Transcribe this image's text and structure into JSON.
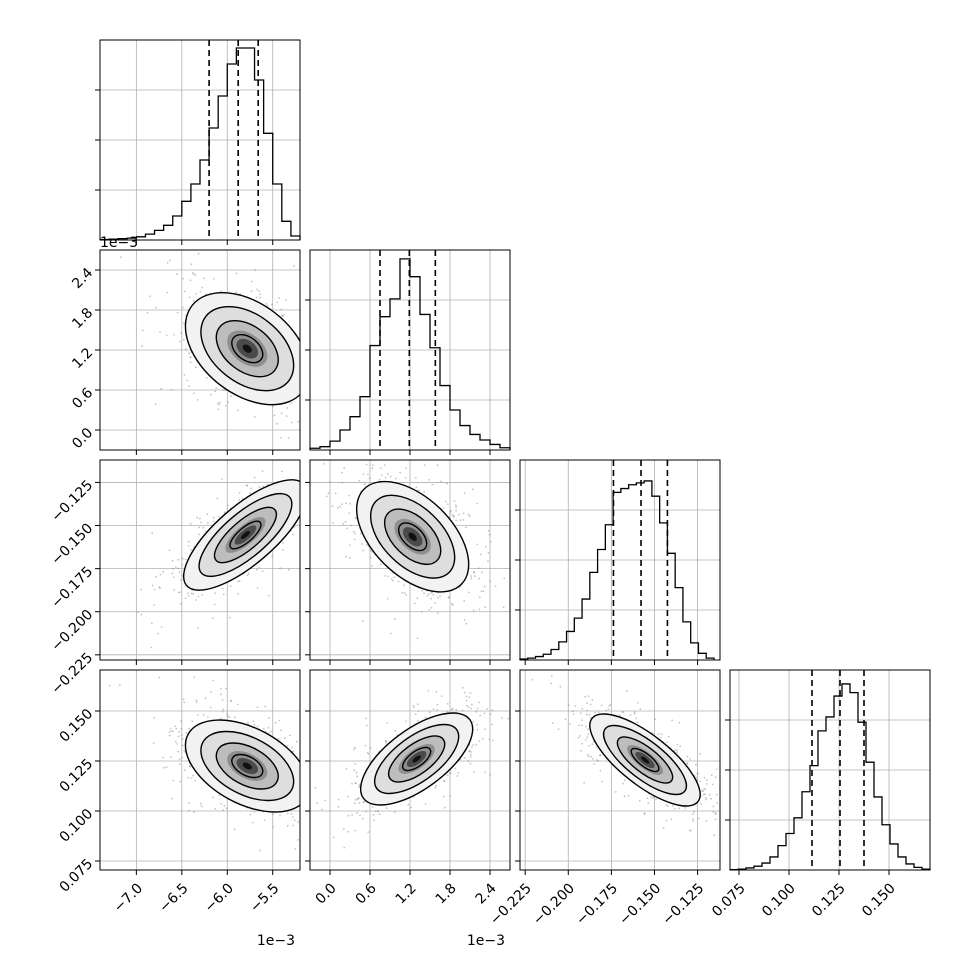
{
  "chart_data": {
    "type": "corner",
    "title": "",
    "style": {
      "line_color": "#000000",
      "grid_color": "#b0b0b0",
      "point_color": "#8a8a8a",
      "background": "#ffffff",
      "grid": true,
      "quantile_line_style": "dashed"
    },
    "parameters": [
      {
        "label": "",
        "range": [
          -0.0074,
          -0.0052
        ],
        "ticks": [
          -0.007,
          -0.0065,
          -0.006,
          -0.0055
        ],
        "tick_labels": [
          "−7.0",
          "−6.5",
          "−6.0",
          "−5.5"
        ],
        "offset_text": "1e−3",
        "quantiles": [
          -0.0062,
          -0.00588,
          -0.00566
        ],
        "histogram": {
          "edges": [
            -0.0074,
            -0.0073,
            -0.0072,
            -0.0071,
            -0.007,
            -0.0069,
            -0.0068,
            -0.0067,
            -0.0066,
            -0.0065,
            -0.0064,
            -0.0063,
            -0.0062,
            -0.0061,
            -0.006,
            -0.0059,
            -0.0058,
            -0.0057,
            -0.0056,
            -0.0055,
            -0.0054,
            -0.0053,
            -0.0052
          ],
          "counts": [
            2,
            3,
            5,
            7,
            12,
            22,
            36,
            55,
            90,
            145,
            210,
            300,
            420,
            540,
            660,
            720,
            720,
            600,
            400,
            210,
            70,
            15
          ],
          "ymax": 750
        }
      },
      {
        "label": "",
        "range": [
          -0.0003,
          0.0027
        ],
        "ticks": [
          0.0,
          0.0006,
          0.0012,
          0.0018,
          0.0024
        ],
        "tick_labels": [
          "0.0",
          "0.6",
          "1.2",
          "1.8",
          "2.4"
        ],
        "offset_text": "1e−3",
        "quantiles": [
          0.00075,
          0.00119,
          0.00158
        ],
        "histogram": {
          "edges": [
            -0.0003,
            -0.00015,
            0.0,
            0.00015,
            0.0003,
            0.00045,
            0.0006,
            0.00075,
            0.0009,
            0.00105,
            0.0012,
            0.00135,
            0.0015,
            0.00165,
            0.0018,
            0.00195,
            0.0021,
            0.00225,
            0.0024,
            0.00255,
            0.0027
          ],
          "counts": [
            8,
            15,
            40,
            90,
            150,
            240,
            470,
            600,
            680,
            860,
            780,
            610,
            460,
            290,
            180,
            110,
            70,
            45,
            25,
            10
          ],
          "ymax": 900
        }
      },
      {
        "label": "",
        "range": [
          -0.228,
          -0.112
        ],
        "ticks": [
          -0.225,
          -0.2,
          -0.175,
          -0.15,
          -0.125
        ],
        "tick_labels": [
          "−0.225",
          "−0.200",
          "−0.175",
          "−0.150",
          "−0.125"
        ],
        "offset_text": "",
        "quantiles": [
          -0.1738,
          -0.1578,
          -0.1425
        ],
        "histogram": {
          "edges": [
            -0.228,
            -0.2235,
            -0.219,
            -0.2145,
            -0.21,
            -0.2055,
            -0.201,
            -0.1965,
            -0.192,
            -0.1875,
            -0.183,
            -0.1785,
            -0.174,
            -0.1695,
            -0.165,
            -0.1605,
            -0.156,
            -0.1515,
            -0.147,
            -0.1425,
            -0.138,
            -0.1335,
            -0.129,
            -0.1245,
            -0.12,
            -0.1155
          ],
          "counts": [
            5,
            10,
            18,
            30,
            55,
            95,
            150,
            220,
            320,
            460,
            580,
            710,
            880,
            900,
            920,
            930,
            940,
            860,
            720,
            560,
            380,
            200,
            90,
            35,
            10
          ],
          "ymax": 1050
        }
      },
      {
        "label": "",
        "range": [
          0.0705,
          0.1705
        ],
        "ticks": [
          0.075,
          0.1,
          0.125,
          0.15
        ],
        "tick_labels": [
          "0.075",
          "0.100",
          "0.125",
          "0.150"
        ],
        "offset_text": "",
        "quantiles": [
          0.1115,
          0.1255,
          0.1375
        ],
        "histogram": {
          "edges": [
            0.0705,
            0.0745,
            0.0785,
            0.0825,
            0.0865,
            0.0905,
            0.0945,
            0.0985,
            0.1025,
            0.1065,
            0.1105,
            0.1145,
            0.1185,
            0.1225,
            0.1265,
            0.1305,
            0.1345,
            0.1385,
            0.1425,
            0.1465,
            0.1505,
            0.1545,
            0.1585,
            0.1625,
            0.1665,
            0.1705
          ],
          "counts": [
            2,
            5,
            12,
            22,
            40,
            75,
            140,
            210,
            300,
            450,
            600,
            800,
            880,
            1000,
            1070,
            1020,
            850,
            620,
            420,
            260,
            150,
            75,
            35,
            15,
            5
          ],
          "ymax": 1150
        }
      }
    ],
    "pairs": [
      {
        "x": 0,
        "y": 1,
        "center": [
          -0.00578,
          0.00122
        ],
        "spread": [
          0.00034,
          0.00042
        ],
        "correlation": -0.4
      },
      {
        "x": 0,
        "y": 2,
        "center": [
          -0.0058,
          -0.1555
        ],
        "spread": [
          0.00034,
          0.016
        ],
        "correlation": 0.75
      },
      {
        "x": 1,
        "y": 2,
        "center": [
          0.00124,
          -0.1565
        ],
        "spread": [
          0.00042,
          0.016
        ],
        "correlation": -0.5
      },
      {
        "x": 0,
        "y": 3,
        "center": [
          -0.00578,
          0.1225
        ],
        "spread": [
          0.00034,
          0.0115
        ],
        "correlation": -0.45
      },
      {
        "x": 1,
        "y": 3,
        "center": [
          0.0013,
          0.126
        ],
        "spread": [
          0.00042,
          0.0115
        ],
        "correlation": 0.65
      },
      {
        "x": 2,
        "y": 3,
        "center": [
          -0.1555,
          0.1255
        ],
        "spread": [
          0.016,
          0.0115
        ],
        "correlation": -0.75
      }
    ],
    "contour_levels_sigma": [
      0.5,
      1.0,
      1.5,
      2.0
    ]
  }
}
